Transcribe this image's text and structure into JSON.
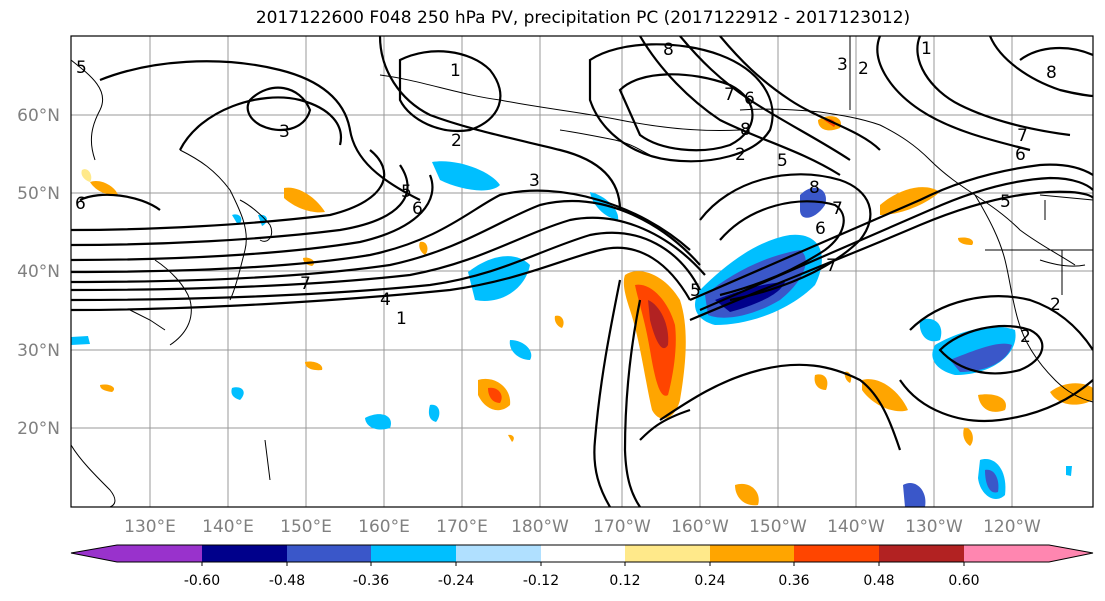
{
  "title": "2017122600 F048 250 hPa PV, precipitation PC (2017122912 - 2017123012)",
  "map": {
    "lat_labels": [
      "60°N",
      "50°N",
      "40°N",
      "30°N",
      "20°N"
    ],
    "lon_labels": [
      "130°E",
      "140°E",
      "150°E",
      "160°E",
      "170°E",
      "180°W",
      "170°W",
      "160°W",
      "150°W",
      "140°W",
      "130°W",
      "120°W"
    ],
    "contour_labels": [
      "1",
      "2",
      "3",
      "3",
      "5",
      "6",
      "7",
      "4",
      "1",
      "7",
      "6",
      "5",
      "2",
      "8",
      "7",
      "6",
      "5",
      "8",
      "7",
      "1",
      "2",
      "8",
      "7",
      "6",
      "5",
      "2",
      "6",
      "5",
      "8",
      "3",
      "2"
    ],
    "grid": true
  },
  "colorbar": {
    "tick_labels": [
      "-0.60",
      "-0.48",
      "-0.36",
      "-0.24",
      "-0.12",
      "0.12",
      "0.24",
      "0.36",
      "0.48",
      "0.60"
    ],
    "colors": [
      "#9932cc",
      "#00008b",
      "#3a57c9",
      "#00bfff",
      "#b0e0ff",
      "#ffffff",
      "#ffe98a",
      "#ffa500",
      "#ff4500",
      "#b22222",
      "#ff86b0"
    ]
  }
}
